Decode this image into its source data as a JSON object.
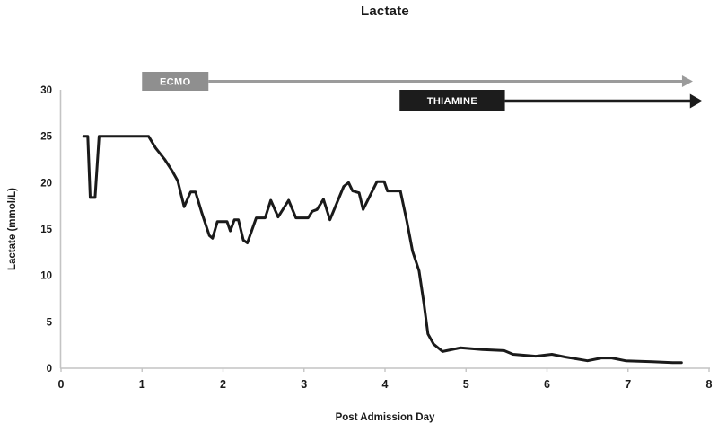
{
  "chart_data": {
    "type": "line",
    "title": "Lactate",
    "xlabel": "Post Admission Day",
    "ylabel": "Lactate (mmol/L)",
    "xlim": [
      0,
      8
    ],
    "ylim": [
      0,
      30
    ],
    "xticks": [
      0,
      1,
      2,
      3,
      4,
      5,
      6,
      7,
      8
    ],
    "yticks": [
      0,
      5,
      10,
      15,
      20,
      25,
      30
    ],
    "grid": false,
    "legend": "none",
    "line_color": "#1a1a1a",
    "axis_color": "#c4c4c4",
    "background_color": "#ffffff",
    "series": [
      {
        "name": "Lactate",
        "x": [
          0.28,
          0.33,
          0.36,
          0.42,
          0.47,
          1.08,
          1.17,
          1.28,
          1.37,
          1.44,
          1.52,
          1.6,
          1.66,
          1.74,
          1.83,
          1.87,
          1.93,
          2.05,
          2.09,
          2.14,
          2.19,
          2.25,
          2.3,
          2.41,
          2.52,
          2.59,
          2.68,
          2.81,
          2.9,
          3.05,
          3.1,
          3.16,
          3.24,
          3.32,
          3.49,
          3.55,
          3.6,
          3.68,
          3.73,
          3.9,
          3.99,
          4.03,
          4.19,
          4.27,
          4.34,
          4.42,
          4.48,
          4.53,
          4.6,
          4.71,
          4.93,
          5.2,
          5.47,
          5.58,
          5.86,
          6.06,
          6.23,
          6.5,
          6.67,
          6.8,
          6.97,
          7.3,
          7.55,
          7.66
        ],
        "y": [
          25,
          25,
          18.4,
          18.4,
          25,
          25,
          23.7,
          22.5,
          21.3,
          20.2,
          17.4,
          19,
          19,
          16.7,
          14.3,
          14,
          15.8,
          15.8,
          14.8,
          16,
          16,
          13.8,
          13.5,
          16.2,
          16.2,
          18.1,
          16.3,
          18.1,
          16.2,
          16.2,
          16.9,
          17.1,
          18.2,
          16,
          19.6,
          20,
          19.1,
          18.9,
          17.1,
          20.1,
          20.1,
          19.1,
          19.1,
          15.8,
          12.6,
          10.5,
          7,
          3.7,
          2.6,
          1.8,
          2.2,
          2,
          1.9,
          1.5,
          1.3,
          1.5,
          1.2,
          0.8,
          1.1,
          1.1,
          0.8,
          0.7,
          0.6,
          0.6
        ]
      }
    ],
    "annotations": [
      {
        "label": "ECMO",
        "type": "bar-with-arrow",
        "bar_start_day": 1.0,
        "bar_end_day": 1.82,
        "arrow_end_day": 7.8,
        "box_color": "#8f8f8f",
        "arrow_color": "#9b9b9b",
        "text_color": "#ffffff"
      },
      {
        "label": "THIAMINE",
        "type": "bar-with-arrow",
        "bar_start_day": 4.18,
        "bar_end_day": 5.48,
        "arrow_end_day": 7.92,
        "box_color": "#1c1c1c",
        "arrow_color": "#1c1c1c",
        "text_color": "#ffffff"
      }
    ]
  }
}
